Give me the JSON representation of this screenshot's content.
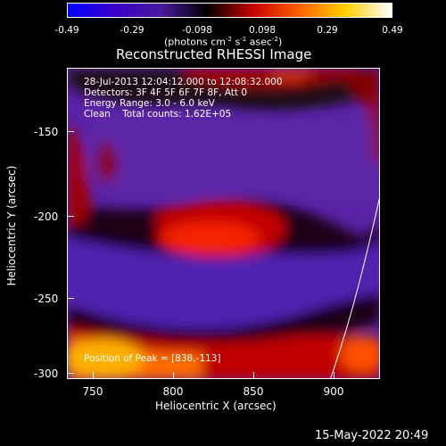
{
  "colorbar": {
    "ticks": [
      "-0.49",
      "-0.29",
      "-0.098",
      "0.098",
      "0.29",
      "0.49"
    ],
    "units_prefix": "(photons cm",
    "units_exp1": "-2",
    "units_mid1": " s",
    "units_exp2": "-1",
    "units_mid2": " asec",
    "units_exp3": "-2",
    "units_suffix": ")",
    "colors": [
      "#0000ff",
      "#3a00c8",
      "#4a1aa0",
      "#000000",
      "#c80000",
      "#ff6000",
      "#ffd000",
      "#ffffff"
    ]
  },
  "title": "Reconstructed RHESSI Image",
  "info": {
    "time_range": "28-Jul-2013 12:04:12.000 to 12:08:32.000",
    "detectors": "Detectors: 3F 4F 5F 6F 7F 8F, Att 0",
    "energy_range": "Energy Range: 3.0 - 6.0 keV",
    "clean_label": "Clean",
    "total_counts": "Total counts: 1.62E+05",
    "peak": "Position of Peak = [838,-113]"
  },
  "axes": {
    "xlabel": "Heliocentric X (arcsec)",
    "ylabel": "Heliocentric Y (arcsec)",
    "xticks": [
      "750",
      "800",
      "850",
      "900"
    ],
    "yticks": [
      "-150",
      "-200",
      "-250",
      "-300"
    ]
  },
  "datestamp": "15-May-2022 20:49"
}
